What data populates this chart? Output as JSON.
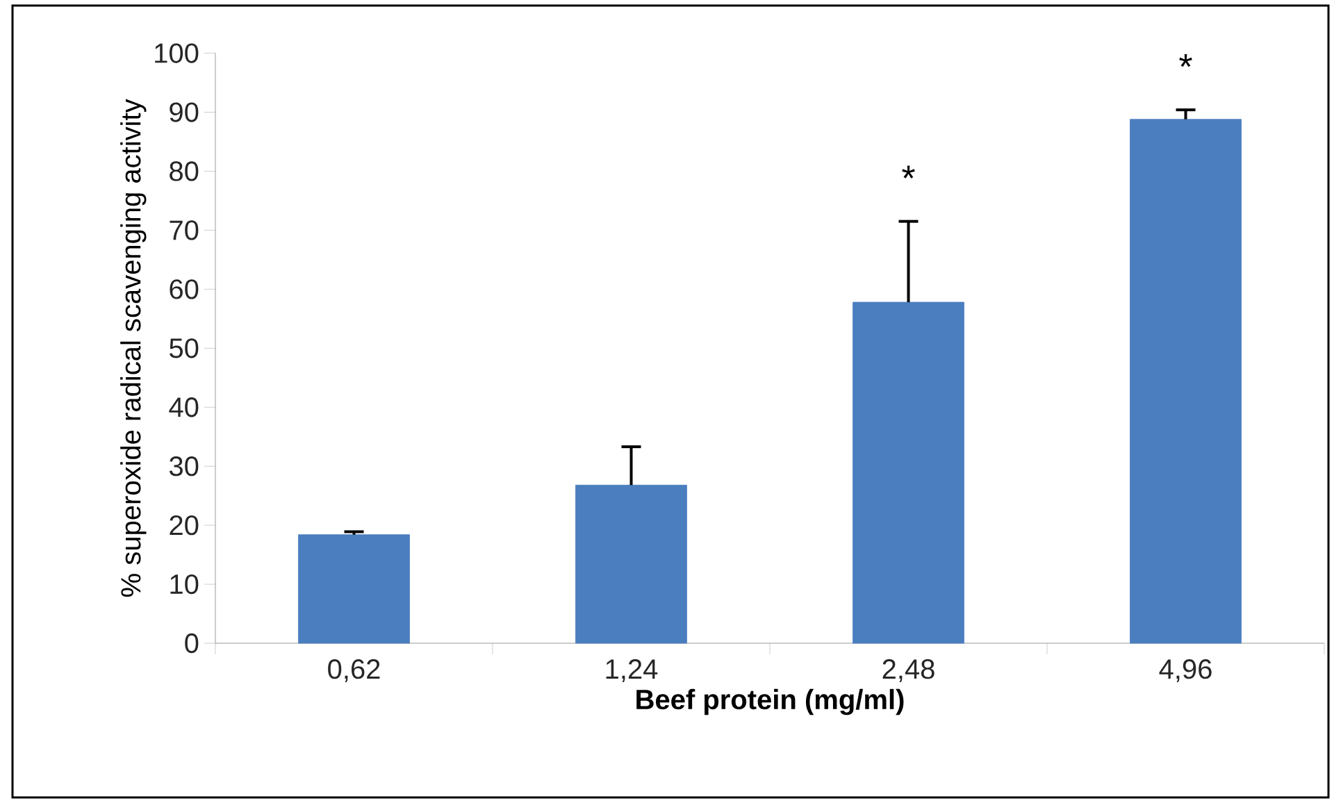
{
  "chart_data": {
    "type": "bar",
    "xlabel": "Beef protein (mg/ml)",
    "ylabel": "% superoxide radical scavenging activity",
    "categories": [
      "0,62",
      "1,24",
      "2,48",
      "4,96"
    ],
    "values": [
      18.4,
      26.8,
      57.8,
      88.8
    ],
    "errors": [
      0.5,
      6.5,
      13.7,
      1.6
    ],
    "color": "#4a7ebf",
    "ylim": [
      0,
      100
    ],
    "yticks": [
      0,
      10,
      20,
      30,
      40,
      50,
      60,
      70,
      80,
      90,
      100
    ],
    "grid": false,
    "annotations": [
      {
        "text": "*",
        "x": "2,48",
        "y": 71.5
      },
      {
        "text": "*",
        "x": "4,96",
        "y": 90.4
      }
    ]
  }
}
